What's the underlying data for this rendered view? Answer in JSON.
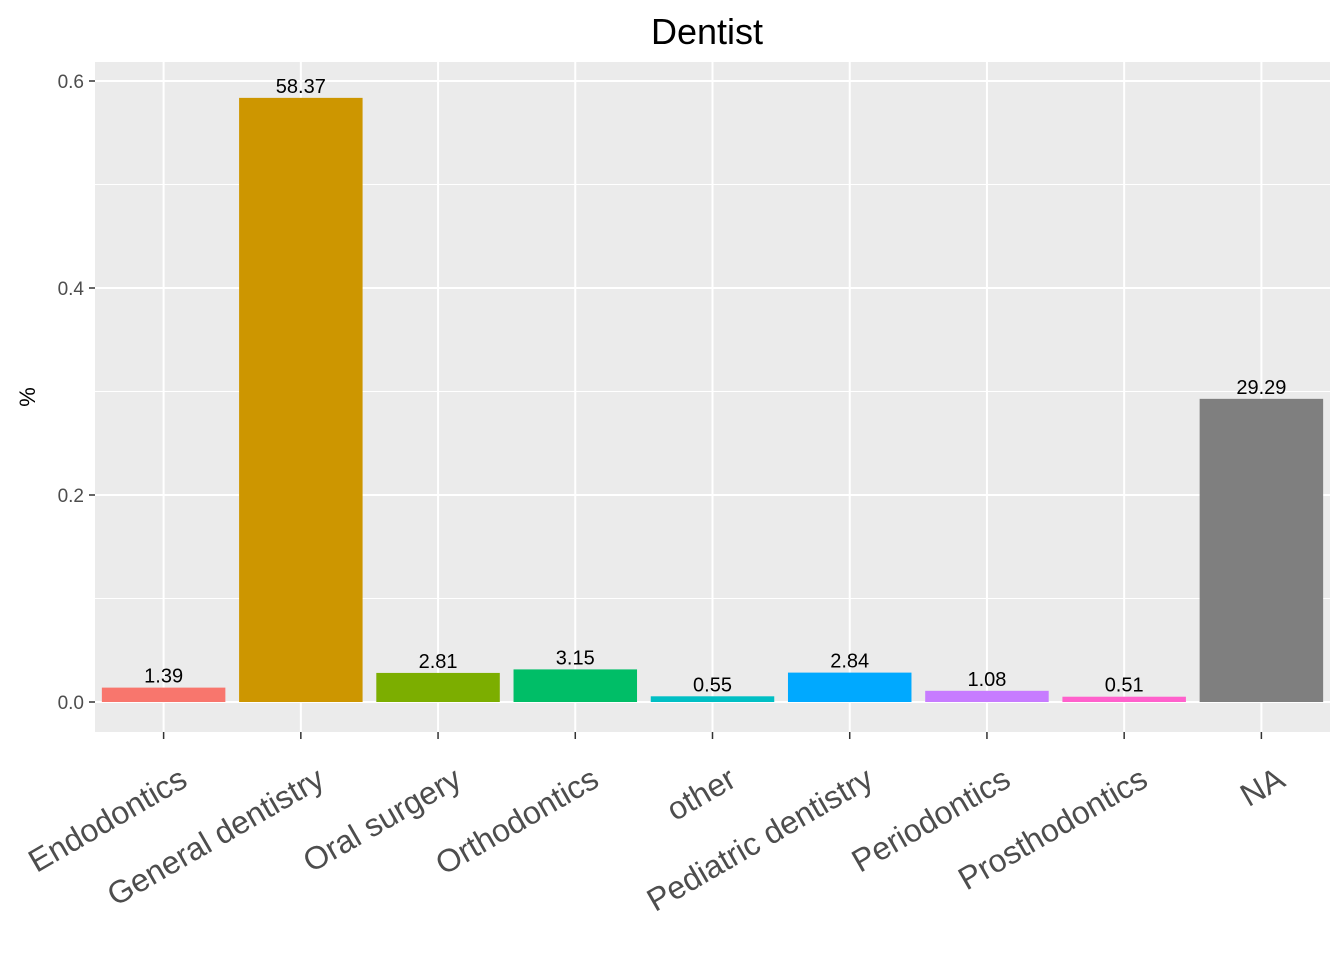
{
  "chart_data": {
    "type": "bar",
    "title": "Dentist",
    "xlabel": "",
    "ylabel": "%",
    "ylim": [
      -0.03,
      0.625
    ],
    "y_ticks": [
      0.0,
      0.2,
      0.4,
      0.6
    ],
    "y_tick_labels": [
      "0.0",
      "0.2",
      "0.4",
      "0.6"
    ],
    "grid": true,
    "legend": "none",
    "categories": [
      "Endodontics",
      "General dentistry",
      "Oral surgery",
      "Orthodontics",
      "other",
      "Pediatric dentistry",
      "Periodontics",
      "Prosthodontics",
      "NA"
    ],
    "values": [
      0.0139,
      0.5837,
      0.0281,
      0.0315,
      0.0055,
      0.0284,
      0.0108,
      0.0051,
      0.2929
    ],
    "data_labels": [
      "1.39",
      "58.37",
      "2.81",
      "3.15",
      "0.55",
      "2.84",
      "1.08",
      "0.51",
      "29.29"
    ],
    "colors": [
      "#F8766D",
      "#CD9600",
      "#7CAE00",
      "#00BE67",
      "#00BFC4",
      "#00A9FF",
      "#C77CFF",
      "#FF61CC",
      "#7F7F7F"
    ]
  }
}
